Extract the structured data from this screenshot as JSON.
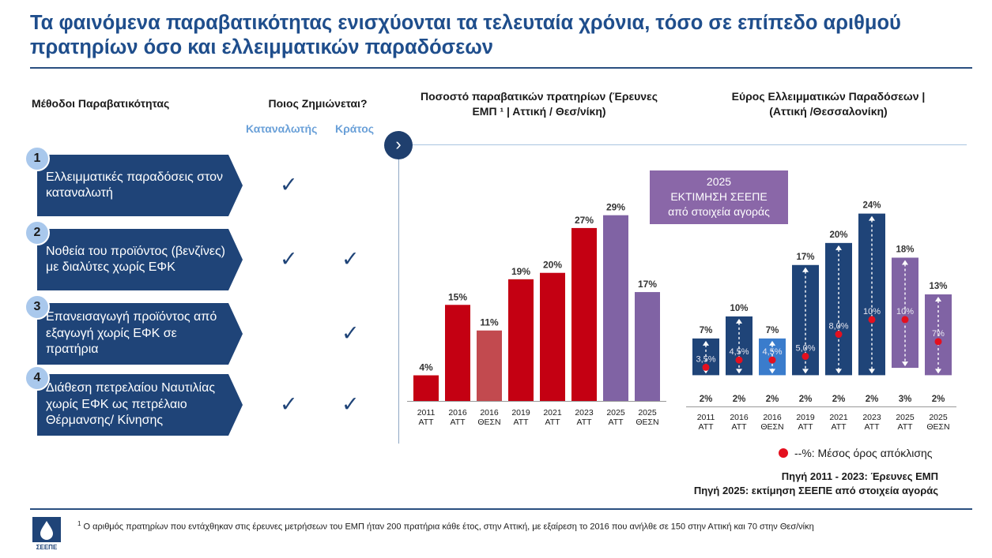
{
  "title": "Τα φαινόμενα παραβατικότητας ενισχύονται τα τελευταία χρόνια, τόσο σε επίπεδο αριθμού πρατηρίων όσο και ελλειμματικών παραδόσεων",
  "methods_header": "Μέθοδοι Παραβατικότητας",
  "who_header": "Ποιος Ζημιώνεται?",
  "consumers_label": "Καταναλωτής",
  "state_label": "Κράτος",
  "methods": [
    {
      "number": "1",
      "label": "Ελλειμματικές παραδόσεις στον καταναλωτή",
      "consumer": true,
      "state": false
    },
    {
      "number": "2",
      "label": "Νοθεία του προϊόντος (βενζίνες) με διαλύτες χωρίς ΕΦΚ",
      "consumer": true,
      "state": true
    },
    {
      "number": "3",
      "label": "Επανεισαγωγή προϊόντος από εξαγωγή χωρίς ΕΦΚ σε πρατήρια",
      "consumer": false,
      "state": true
    },
    {
      "number": "4",
      "label": "Διάθεση πετρελαίου Ναυτιλίας χωρίς ΕΦΚ ως πετρέλαιο Θέρμανσης/ Κίνησης",
      "consumer": true,
      "state": true
    }
  ],
  "check_icon": "✓",
  "chevron_icon": "›",
  "callout": {
    "line1": "2025",
    "line2": "ΕΚΤΙΜΗΣΗ ΣΕΕΠΕ",
    "line3": "από στοιχεία αγοράς"
  },
  "legend_label": "--%: Μέσος όρος απόκλισης",
  "source_1": "Πηγή 2011 - 2023: Έρευνες ΕΜΠ",
  "source_2": "Πηγή 2025: εκτίμηση ΣΕΕΠΕ από στοιχεία αγοράς",
  "footnote_mark": "1",
  "footnote_text": "Ο αριθμός πρατηρίων που εντάχθηκαν στις έρευνες μετρήσεων του ΕΜΠ ήταν 200 πρατήρια κάθε έτος, στην Αττική, με εξαίρεση το 2016 που ανήλθε σε 150 στην Αττική και 70 στην Θεσ/νίκη",
  "logo_text": "ΣΕΕΠΕ",
  "colors": {
    "navy": "#1f4478",
    "red": "#c40012",
    "light_red": "#c24a4f",
    "purple": "#8063a4",
    "blue": "#3a7ccc",
    "dot": "#e4101f"
  },
  "chart_data": [
    {
      "type": "bar",
      "title": "Ποσοστό παραβατικών πρατηρίων (Έρευνες ΕΜΠ ¹ | Αττική / Θεσ/νίκη)",
      "categories": [
        "2011 ΑΤΤ",
        "2016 ΑΤΤ",
        "2016 ΘΕΣΝ",
        "2019 ΑΤΤ",
        "2021 ΑΤΤ",
        "2023 ΑΤΤ",
        "2025 ΑΤΤ",
        "2025 ΘΕΣΝ"
      ],
      "values": [
        4,
        15,
        11,
        19,
        20,
        27,
        29,
        17
      ],
      "labels": [
        "4%",
        "15%",
        "11%",
        "19%",
        "20%",
        "27%",
        "29%",
        "17%"
      ],
      "bar_colors": [
        "#c40012",
        "#c40012",
        "#c24a4f",
        "#c40012",
        "#c40012",
        "#c40012",
        "#8063a4",
        "#8063a4"
      ],
      "ylim": [
        0,
        35
      ]
    },
    {
      "type": "range",
      "title": "Εύρος Ελλειμματικών Παραδόσεων | (Αττική /Θεσσαλονίκη)",
      "categories": [
        "2011 ΑΤΤ",
        "2016 ΑΤΤ",
        "2016 ΘΕΣΝ",
        "2019 ΑΤΤ",
        "2021 ΑΤΤ",
        "2023 ΑΤΤ",
        "2025 ΑΤΤ",
        "2025 ΘΕΣΝ"
      ],
      "low": [
        2,
        2,
        2,
        2,
        2,
        2,
        3,
        2
      ],
      "high": [
        7,
        10,
        7,
        17,
        20,
        24,
        18,
        13
      ],
      "mean": [
        3.5,
        4.5,
        4.5,
        5.0,
        8.0,
        10,
        10,
        7
      ],
      "low_labels": [
        "2%",
        "2%",
        "2%",
        "2%",
        "2%",
        "2%",
        "3%",
        "2%"
      ],
      "high_labels": [
        "7%",
        "10%",
        "7%",
        "17%",
        "20%",
        "24%",
        "18%",
        "13%"
      ],
      "mean_labels": [
        "3,5%",
        "4,5%",
        "4,5%",
        "5,0%",
        "8,0%",
        "10%",
        "10%",
        "7%"
      ],
      "bar_colors": [
        "#1f4478",
        "#1f4478",
        "#3a7ccc",
        "#1f4478",
        "#1f4478",
        "#1f4478",
        "#8063a4",
        "#8063a4"
      ],
      "ylim": [
        0,
        26
      ]
    }
  ]
}
